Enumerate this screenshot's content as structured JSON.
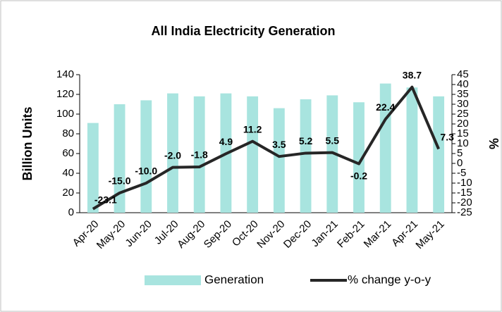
{
  "chart_data": {
    "type": "bar+line",
    "title": "All India Electricity Generation",
    "y_label": "Billion Units",
    "y2_label": "%",
    "categories": [
      "Apr-20",
      "May-20",
      "Jun-20",
      "Jul-20",
      "Aug-20",
      "Sep-20",
      "Oct-20",
      "Nov-20",
      "Dec-20",
      "Jan-21",
      "Feb-21",
      "Mar-21",
      "Apr-21",
      "May-21"
    ],
    "series": [
      {
        "name": "Generation",
        "type": "bar",
        "color": "#a8e4df",
        "values": [
          91,
          110,
          114,
          121,
          118,
          121,
          118,
          106,
          115,
          119,
          112,
          131,
          127,
          118
        ]
      },
      {
        "name": "% change y-o-y",
        "type": "line",
        "axis": "y2",
        "color": "#262626",
        "values": [
          -23.1,
          -15.0,
          -10.0,
          -2.0,
          -1.8,
          4.9,
          11.2,
          3.5,
          5.2,
          5.5,
          -0.2,
          22.4,
          38.7,
          7.3
        ],
        "value_labels": [
          "-23.1",
          "-15.0",
          "-10.0",
          "-2.0",
          "-1.8",
          "4.9",
          "11.2",
          "3.5",
          "5.2",
          "5.5",
          "-0.2",
          "22.4",
          "38.7",
          "7.3"
        ]
      }
    ],
    "ylim": [
      0,
      140
    ],
    "yticks": [
      0,
      20,
      40,
      60,
      80,
      100,
      120,
      140
    ],
    "y2lim": [
      -25,
      45
    ],
    "y2ticks": [
      -25,
      -20,
      -15,
      -10,
      -5,
      0,
      5,
      10,
      15,
      20,
      25,
      30,
      35,
      40,
      45
    ],
    "legend": "bottom"
  }
}
